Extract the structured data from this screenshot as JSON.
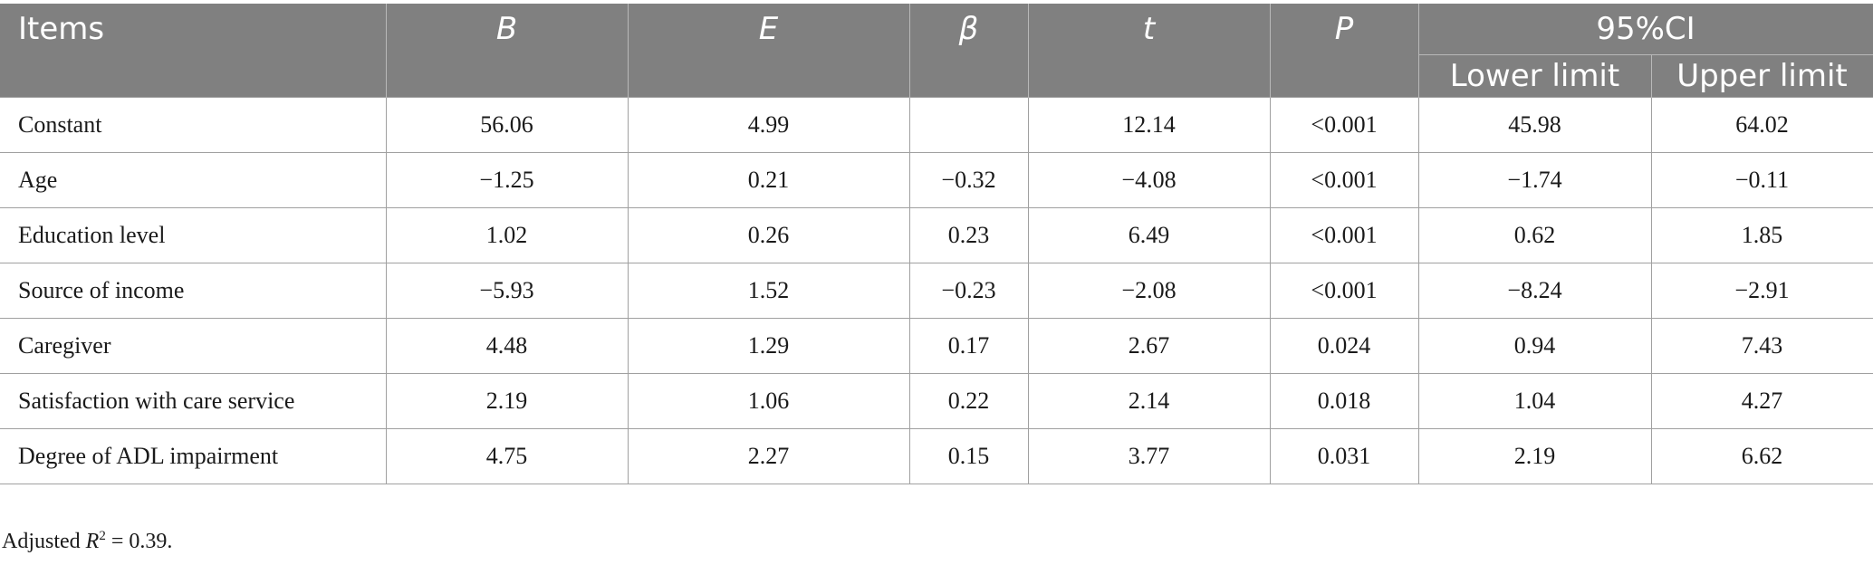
{
  "header": {
    "items": "Items",
    "b": "B",
    "e": "E",
    "beta": "β",
    "t": "t",
    "p": "P",
    "ci": "95%CI",
    "lower": "Lower limit",
    "upper": "Upper limit"
  },
  "rows": [
    {
      "item": "Constant",
      "b": "56.06",
      "e": "4.99",
      "beta": "",
      "t": "12.14",
      "p": "<0.001",
      "lower": "45.98",
      "upper": "64.02"
    },
    {
      "item": "Age",
      "b": "−1.25",
      "e": "0.21",
      "beta": "−0.32",
      "t": "−4.08",
      "p": "<0.001",
      "lower": "−1.74",
      "upper": "−0.11"
    },
    {
      "item": "Education level",
      "b": "1.02",
      "e": "0.26",
      "beta": "0.23",
      "t": "6.49",
      "p": "<0.001",
      "lower": "0.62",
      "upper": "1.85"
    },
    {
      "item": "Source of income",
      "b": "−5.93",
      "e": "1.52",
      "beta": "−0.23",
      "t": "−2.08",
      "p": "<0.001",
      "lower": "−8.24",
      "upper": "−2.91"
    },
    {
      "item": "Caregiver",
      "b": "4.48",
      "e": "1.29",
      "beta": "0.17",
      "t": "2.67",
      "p": "0.024",
      "lower": "0.94",
      "upper": "7.43"
    },
    {
      "item": "Satisfaction with care service",
      "b": "2.19",
      "e": "1.06",
      "beta": "0.22",
      "t": "2.14",
      "p": "0.018",
      "lower": "1.04",
      "upper": "4.27"
    },
    {
      "item": "Degree of ADL impairment",
      "b": "4.75",
      "e": "2.27",
      "beta": "0.15",
      "t": "3.77",
      "p": "0.031",
      "lower": "2.19",
      "upper": "6.62"
    }
  ],
  "footnote": {
    "prefix": "Adjusted ",
    "var": "R",
    "sup": "2",
    "value": " = 0.39."
  }
}
